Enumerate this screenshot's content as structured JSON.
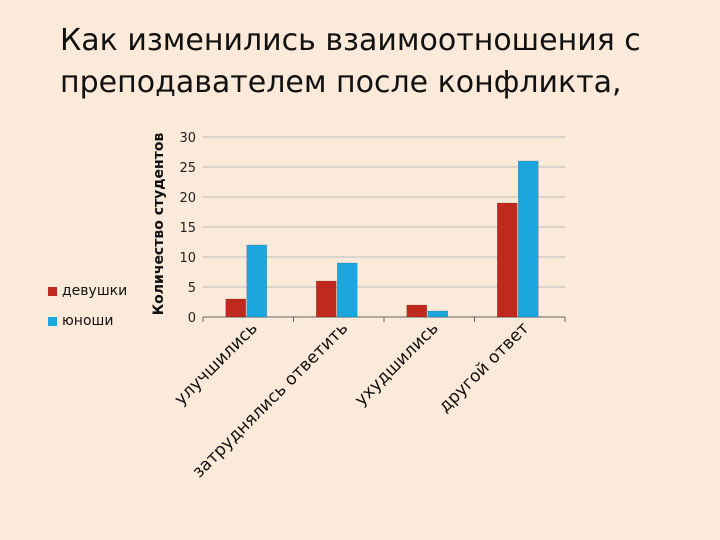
{
  "title": "Как изменились взаимоотношения с\nпреподавателем после конфликта,",
  "chart_data": {
    "type": "bar",
    "categories": [
      "улучшились",
      "затруднялись ответить",
      "ухудшились",
      "другой ответ"
    ],
    "series": [
      {
        "name": "девушки",
        "values": [
          3,
          6,
          2,
          19
        ],
        "color": "#C0291E"
      },
      {
        "name": "юноши",
        "values": [
          12,
          9,
          1,
          26
        ],
        "color": "#1BA7DE"
      }
    ],
    "ylabel": "Количество студентов",
    "ylim": [
      0,
      30
    ],
    "yticks": [
      "0",
      "5",
      "10",
      "15",
      "20",
      "25",
      "30"
    ],
    "grid": true,
    "legend": "left"
  }
}
